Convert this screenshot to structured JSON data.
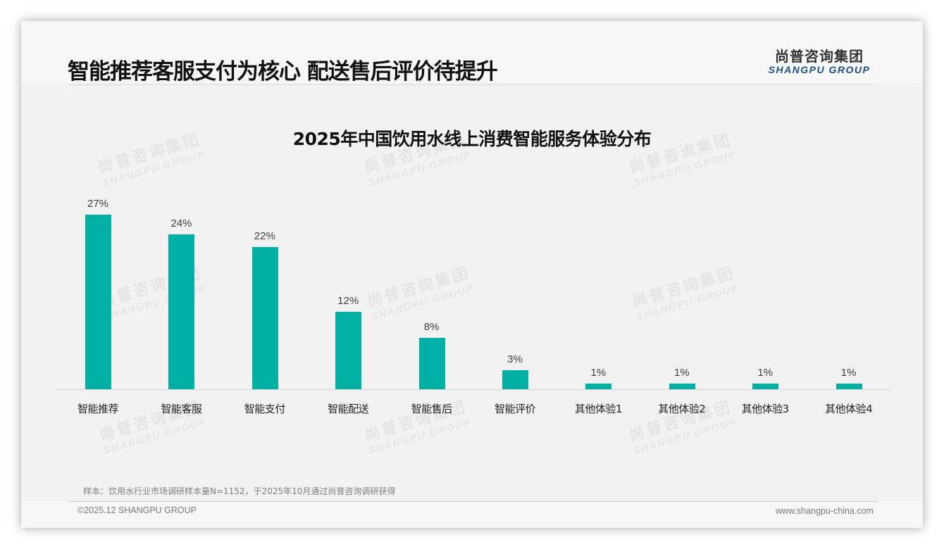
{
  "header": {
    "title": "智能推荐客服支付为核心 配送售后评价待提升",
    "logo_cn": "尚普咨询集团",
    "logo_en": "SHANGPU GROUP"
  },
  "watermark": {
    "cn": "尚普咨询集团",
    "en": "SHANGPU GROUP"
  },
  "colors": {
    "bar": "#00B0A5",
    "title": "#111111",
    "logo_en": "#1D4F86"
  },
  "chart_data": {
    "type": "bar",
    "title": "2025年中国饮用水线上消费智能服务体验分布",
    "categories": [
      "智能推荐",
      "智能客服",
      "智能支付",
      "智能配送",
      "智能售后",
      "智能评价",
      "其他体验1",
      "其他体验2",
      "其他体验3",
      "其他体验4"
    ],
    "values": [
      27,
      24,
      22,
      12,
      8,
      3,
      1,
      1,
      1,
      1
    ],
    "labels": [
      "27%",
      "24%",
      "22%",
      "12%",
      "8%",
      "3%",
      "1%",
      "1%",
      "1%",
      "1%"
    ],
    "unit": "%",
    "xlabel": "",
    "ylabel": "",
    "ylim": [
      0,
      30
    ],
    "grid": false,
    "legend": "none"
  },
  "footer": {
    "note": "样本：饮用水行业市场调研样本量N=1152，于2025年10月通过尚普咨询调研获得",
    "copyright": "©2025.12 SHANGPU GROUP",
    "website": "www.shangpu-china.com"
  }
}
